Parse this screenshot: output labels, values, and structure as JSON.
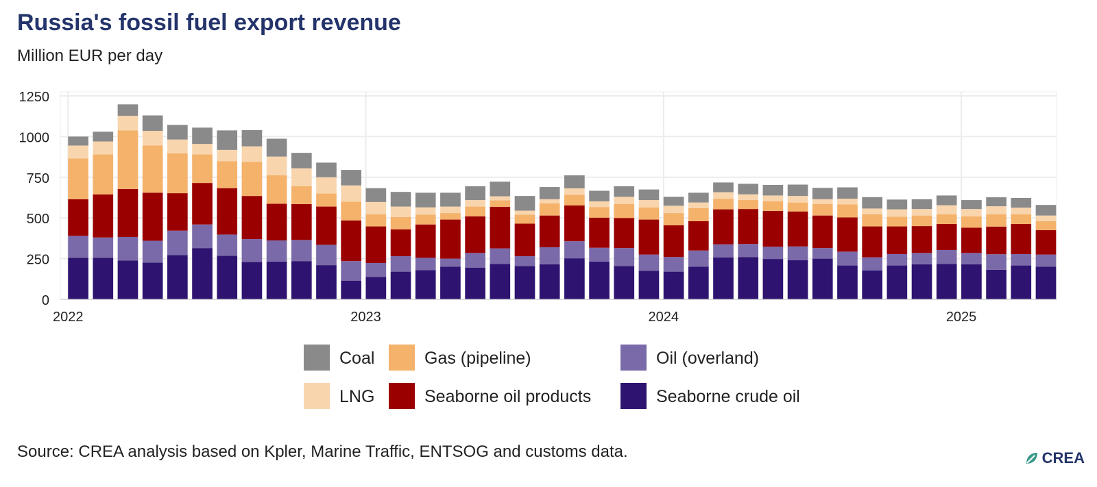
{
  "title": "Russia's fossil fuel export revenue",
  "subtitle": "Million EUR per day",
  "source": "Source: CREA analysis based on Kpler, Marine Traffic, ENTSOG and customs data.",
  "logo_text": "CREA",
  "colors": {
    "coal": "#8a8a8a",
    "lng": "#f9d5ad",
    "gas_pipeline": "#f4b26b",
    "seaborne_oil_products": "#9b0000",
    "oil_overland": "#7b6aa9",
    "seaborne_crude_oil": "#2e1470",
    "title": "#24346b",
    "logo_leaf": "#3a9a8a"
  },
  "chart_data": {
    "type": "bar",
    "stacked": true,
    "ylim": [
      0,
      1250
    ],
    "yticks": [
      0,
      250,
      500,
      750,
      1000,
      1250
    ],
    "grid": true,
    "legend_position": "bottom",
    "x_year_labels": [
      {
        "label": "2022",
        "month_index": 0
      },
      {
        "label": "2023",
        "month_index": 12
      },
      {
        "label": "2024",
        "month_index": 24
      },
      {
        "label": "2025",
        "month_index": 36
      }
    ],
    "categories": [
      "2022-01",
      "2022-02",
      "2022-03",
      "2022-04",
      "2022-05",
      "2022-06",
      "2022-07",
      "2022-08",
      "2022-09",
      "2022-10",
      "2022-11",
      "2022-12",
      "2023-01",
      "2023-02",
      "2023-03",
      "2023-04",
      "2023-05",
      "2023-06",
      "2023-07",
      "2023-08",
      "2023-09",
      "2023-10",
      "2023-11",
      "2023-12",
      "2024-01",
      "2024-02",
      "2024-03",
      "2024-04",
      "2024-05",
      "2024-06",
      "2024-07",
      "2024-08",
      "2024-09",
      "2024-10",
      "2024-11",
      "2024-12",
      "2025-01",
      "2025-02",
      "2025-03",
      "2025-04"
    ],
    "series": [
      {
        "name": "Seaborne crude oil",
        "key": "seaborne_crude_oil",
        "values": [
          255,
          255,
          238,
          225,
          272,
          315,
          268,
          230,
          232,
          235,
          210,
          115,
          138,
          170,
          180,
          200,
          195,
          218,
          205,
          215,
          252,
          232,
          205,
          175,
          170,
          200,
          258,
          260,
          248,
          240,
          250,
          208,
          178,
          208,
          215,
          218,
          215,
          182,
          208,
          200
        ]
      },
      {
        "name": "Oil (overland)",
        "key": "oil_overland",
        "values": [
          135,
          125,
          145,
          135,
          150,
          145,
          130,
          140,
          130,
          130,
          125,
          120,
          85,
          95,
          75,
          50,
          90,
          95,
          60,
          105,
          105,
          85,
          110,
          100,
          90,
          100,
          80,
          80,
          75,
          85,
          65,
          85,
          80,
          70,
          70,
          85,
          70,
          95,
          70,
          75
        ]
      },
      {
        "name": "Seaborne oil products",
        "key": "seaborne_oil_products",
        "values": [
          225,
          265,
          295,
          295,
          230,
          255,
          285,
          265,
          225,
          220,
          235,
          250,
          225,
          165,
          205,
          240,
          225,
          255,
          200,
          195,
          220,
          185,
          185,
          215,
          195,
          180,
          215,
          215,
          220,
          215,
          200,
          210,
          190,
          170,
          165,
          160,
          155,
          170,
          185,
          150
        ]
      },
      {
        "name": "Gas (pipeline)",
        "key": "gas_pipeline",
        "values": [
          250,
          245,
          360,
          290,
          245,
          175,
          165,
          210,
          175,
          110,
          80,
          115,
          75,
          75,
          60,
          40,
          60,
          40,
          55,
          75,
          65,
          65,
          85,
          75,
          75,
          80,
          65,
          55,
          60,
          55,
          70,
          80,
          75,
          60,
          65,
          60,
          70,
          75,
          60,
          55
        ]
      },
      {
        "name": "LNG",
        "key": "lng",
        "values": [
          80,
          80,
          90,
          90,
          85,
          65,
          70,
          95,
          115,
          110,
          100,
          100,
          75,
          65,
          45,
          40,
          40,
          25,
          25,
          25,
          40,
          35,
          45,
          45,
          45,
          35,
          40,
          35,
          35,
          40,
          30,
          35,
          35,
          45,
          40,
          55,
          45,
          50,
          40,
          35
        ]
      },
      {
        "name": "Coal",
        "key": "coal",
        "values": [
          55,
          60,
          70,
          95,
          90,
          100,
          120,
          100,
          110,
          95,
          90,
          95,
          85,
          90,
          90,
          85,
          85,
          90,
          90,
          75,
          80,
          65,
          65,
          65,
          55,
          60,
          60,
          65,
          65,
          70,
          70,
          70,
          70,
          60,
          60,
          60,
          55,
          55,
          60,
          65
        ]
      }
    ],
    "legend": [
      {
        "label": "Coal",
        "key": "coal"
      },
      {
        "label": "Gas (pipeline)",
        "key": "gas_pipeline"
      },
      {
        "label": "Oil (overland)",
        "key": "oil_overland"
      },
      {
        "label": "LNG",
        "key": "lng"
      },
      {
        "label": "Seaborne oil products",
        "key": "seaborne_oil_products"
      },
      {
        "label": "Seaborne crude oil",
        "key": "seaborne_crude_oil"
      }
    ]
  }
}
